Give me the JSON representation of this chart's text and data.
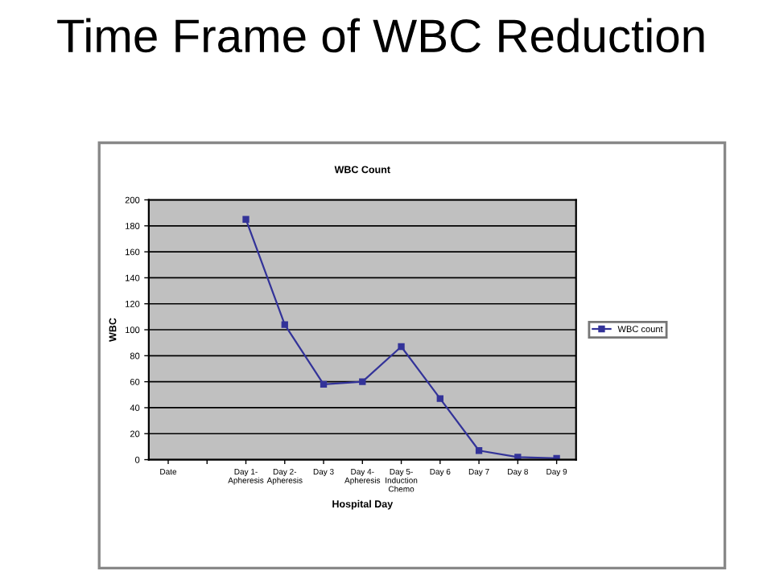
{
  "chart_data": {
    "type": "line",
    "title": "Time Frame of WBC Reduction",
    "subtitle": "WBC Count",
    "xlabel": "Hospital Day",
    "ylabel": "WBC",
    "categories": [
      "Date",
      null,
      "Day 1-\nApheresis",
      "Day 2-\nApheresis",
      "Day 3",
      "Day 4-\nApheresis",
      "Day 5-\nInduction\nChemo",
      "Day 6",
      "Day 7",
      "Day 8",
      "Day 9"
    ],
    "series": [
      {
        "name": "WBC count",
        "color": "#333399",
        "values": [
          null,
          null,
          185,
          104,
          58,
          60,
          87,
          47,
          7,
          2,
          1
        ]
      }
    ],
    "ylim": [
      0,
      200
    ],
    "yticks": [
      0,
      20,
      40,
      60,
      80,
      100,
      120,
      140,
      160,
      180,
      200
    ],
    "grid": "y",
    "legend": "right",
    "marker": "square",
    "line_style": "solid"
  }
}
